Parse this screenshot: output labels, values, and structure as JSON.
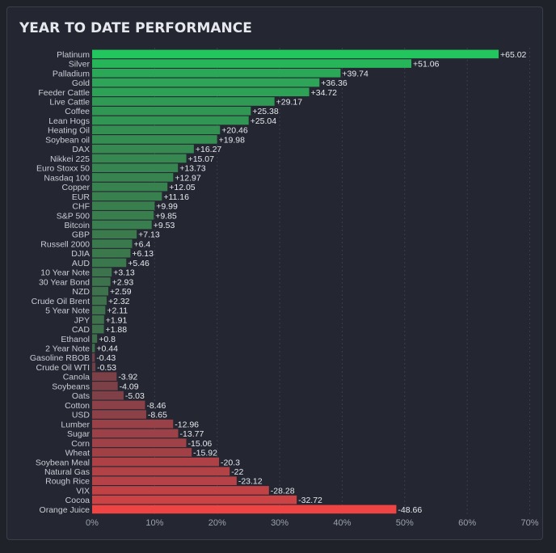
{
  "title": "YEAR TO DATE PERFORMANCE",
  "colors": {
    "positive_strong": "#22c55e",
    "positive_muted": "#3f6b4a",
    "negative_muted": "#6b3f48",
    "negative_strong": "#ef4444",
    "label": "#c9ccd4",
    "value_label": "#e6e8ee",
    "grid": "#3a3e49",
    "tick": "#9aa0ab"
  },
  "chart_data": {
    "type": "bar",
    "orientation": "horizontal",
    "title": "YEAR TO DATE PERFORMANCE",
    "xlim": [
      0,
      70
    ],
    "xticks": [
      "0%",
      "10%",
      "20%",
      "30%",
      "40%",
      "50%",
      "60%",
      "70%"
    ],
    "grid": "vertical dotted",
    "categories": [
      "Platinum",
      "Silver",
      "Palladium",
      "Gold",
      "Feeder Cattle",
      "Live Cattle",
      "Coffee",
      "Lean Hogs",
      "Heating Oil",
      "Soybean oil",
      "DAX",
      "Nikkei 225",
      "Euro Stoxx 50",
      "Nasdaq 100",
      "Copper",
      "EUR",
      "CHF",
      "S&P 500",
      "Bitcoin",
      "GBP",
      "Russell 2000",
      "DJIA",
      "AUD",
      "10 Year Note",
      "30 Year Bond",
      "NZD",
      "Crude Oil Brent",
      "5 Year Note",
      "JPY",
      "CAD",
      "Ethanol",
      "2 Year Note",
      "Gasoline RBOB",
      "Crude Oil WTI",
      "Canola",
      "Soybeans",
      "Oats",
      "Cotton",
      "USD",
      "Lumber",
      "Sugar",
      "Corn",
      "Wheat",
      "Soybean Meal",
      "Natural Gas",
      "Rough Rice",
      "VIX",
      "Cocoa",
      "Orange Juice"
    ],
    "values": [
      65.02,
      51.06,
      39.74,
      36.36,
      34.72,
      29.17,
      25.38,
      25.04,
      20.46,
      19.98,
      16.27,
      15.07,
      13.73,
      12.97,
      12.05,
      11.16,
      9.99,
      9.85,
      9.53,
      7.13,
      6.4,
      6.13,
      5.46,
      3.13,
      2.93,
      2.59,
      2.32,
      2.11,
      1.91,
      1.88,
      0.8,
      0.44,
      -0.43,
      -0.53,
      -3.92,
      -4.09,
      -5.03,
      -8.46,
      -8.65,
      -12.96,
      -13.77,
      -15.06,
      -15.92,
      -20.3,
      -22,
      -23.12,
      -28.28,
      -32.72,
      -48.66
    ],
    "value_labels": [
      "+65.02",
      "+51.06",
      "+39.74",
      "+36.36",
      "+34.72",
      "+29.17",
      "+25.38",
      "+25.04",
      "+20.46",
      "+19.98",
      "+16.27",
      "+15.07",
      "+13.73",
      "+12.97",
      "+12.05",
      "+11.16",
      "+9.99",
      "+9.85",
      "+9.53",
      "+7.13",
      "+6.4",
      "+6.13",
      "+5.46",
      "+3.13",
      "+2.93",
      "+2.59",
      "+2.32",
      "+2.11",
      "+1.91",
      "+1.88",
      "+0.8",
      "+0.44",
      "-0.43",
      "-0.53",
      "-3.92",
      "-4.09",
      "-5.03",
      "-8.46",
      "-8.65",
      "-12.96",
      "-13.77",
      "-15.06",
      "-15.92",
      "-20.3",
      "-22",
      "-23.12",
      "-28.28",
      "-32.72",
      "-48.66"
    ]
  }
}
